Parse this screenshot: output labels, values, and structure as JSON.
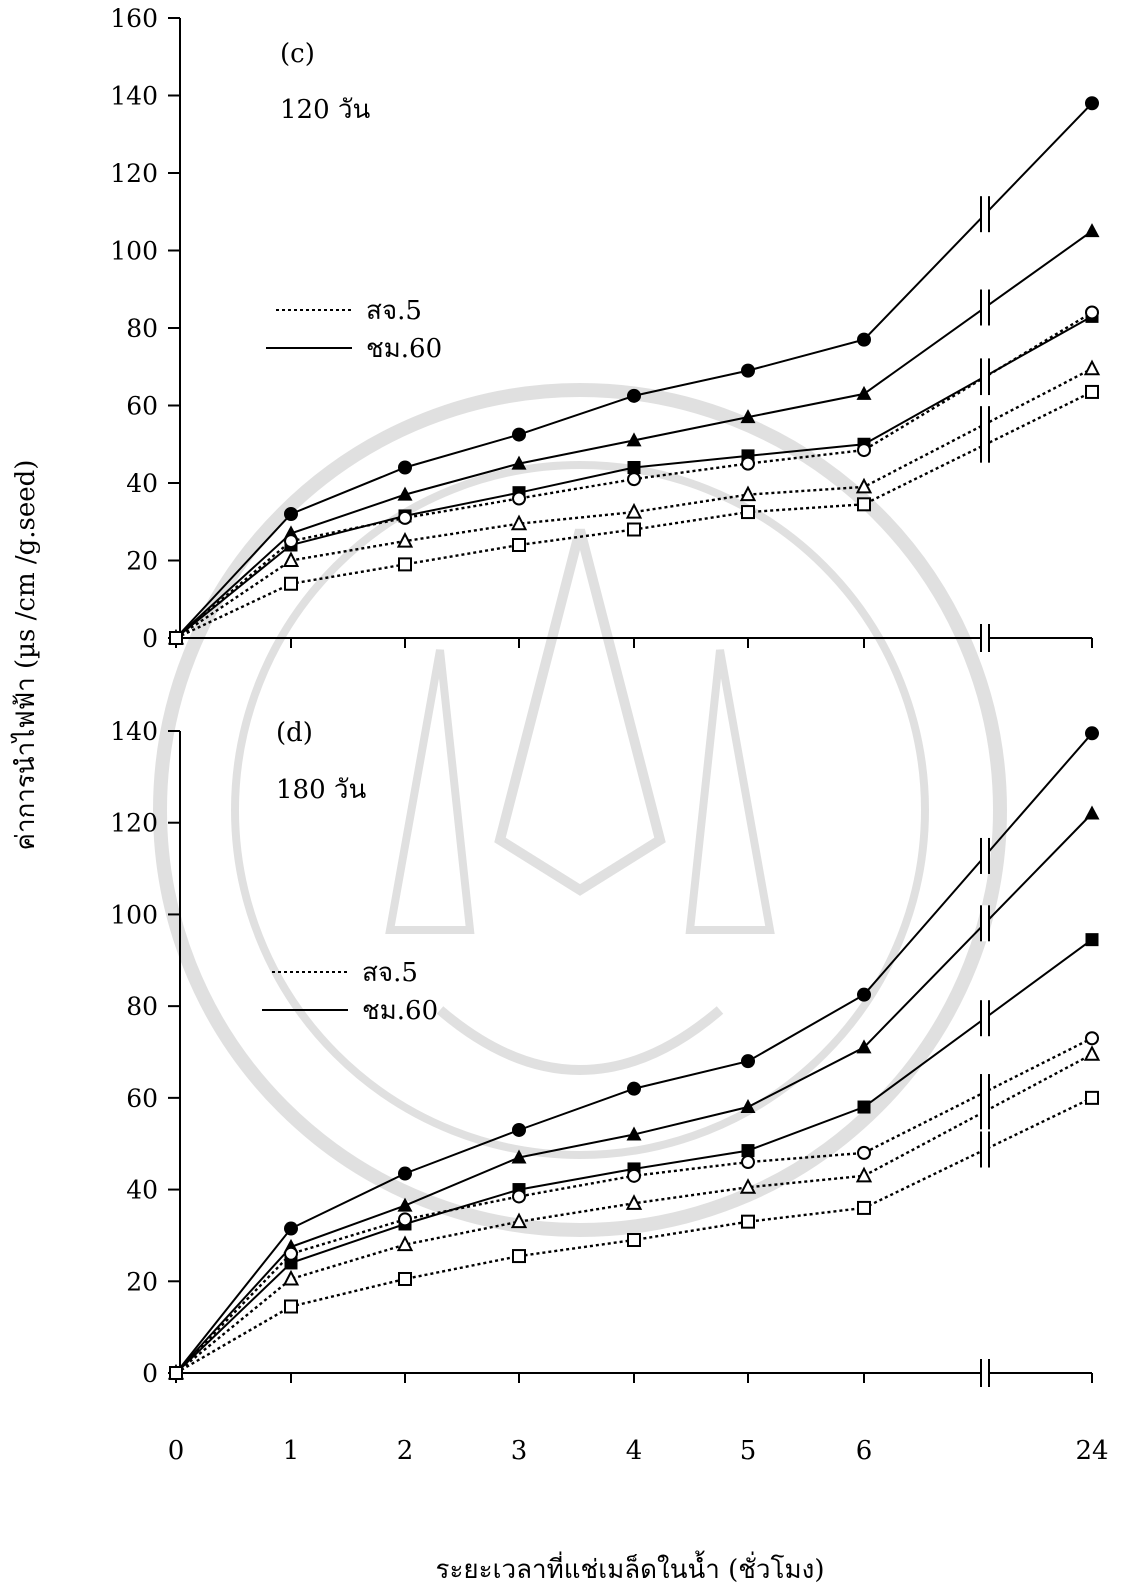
{
  "figure": {
    "ylabel": "ค่าการนำไฟฟ้า (µs /cm /g.seed)",
    "xlabel": "ระยะเวลาที่แช่เมล็ดในน้ำ (ชั่วโมง)",
    "xticks": [
      "0",
      "1",
      "2",
      "3",
      "4",
      "5",
      "6",
      "24"
    ],
    "legend": {
      "dotted_label": "สจ.5",
      "solid_label": "ชม.60"
    },
    "colors": {
      "ink": "#000000",
      "watermark": "#c8c8c8"
    }
  },
  "chart_data": [
    {
      "type": "line",
      "panel_label": "(c)",
      "subtitle": "120 วัน",
      "x": [
        0,
        1,
        2,
        3,
        4,
        5,
        6,
        24
      ],
      "x_axis_break": "between 6 and 24",
      "ylim": [
        0,
        160
      ],
      "yticks": [
        0,
        20,
        40,
        60,
        80,
        100,
        120,
        140,
        160
      ],
      "legend_placement": "upper-left",
      "series": [
        {
          "name": "ชม.60",
          "marker": "filled-circle",
          "line": "solid",
          "values": [
            0,
            32,
            44,
            52.5,
            62.5,
            69,
            77,
            138
          ]
        },
        {
          "name": "ชม.60",
          "marker": "filled-triangle",
          "line": "solid",
          "values": [
            0,
            27,
            37,
            45,
            51,
            57,
            63,
            105
          ]
        },
        {
          "name": "ชม.60",
          "marker": "filled-square",
          "line": "solid",
          "values": [
            0,
            24,
            31.5,
            37.5,
            44,
            47,
            50,
            83
          ]
        },
        {
          "name": "สจ.5",
          "marker": "open-circle",
          "line": "dotted",
          "values": [
            0,
            25,
            31,
            36,
            41,
            45,
            48.5,
            84
          ]
        },
        {
          "name": "สจ.5",
          "marker": "open-triangle",
          "line": "dotted",
          "values": [
            0,
            20,
            25,
            29.5,
            32.5,
            37,
            39,
            69.5
          ]
        },
        {
          "name": "สจ.5",
          "marker": "open-square",
          "line": "dotted",
          "values": [
            0,
            14,
            19,
            24,
            28,
            32.5,
            34.5,
            63.5
          ]
        }
      ]
    },
    {
      "type": "line",
      "panel_label": "(d)",
      "subtitle": "180 วัน",
      "x": [
        0,
        1,
        2,
        3,
        4,
        5,
        6,
        24
      ],
      "x_axis_break": "between 6 and 24",
      "ylim": [
        0,
        140
      ],
      "yticks": [
        0,
        20,
        40,
        60,
        80,
        100,
        120,
        140
      ],
      "legend_placement": "upper-left",
      "series": [
        {
          "name": "ชม.60",
          "marker": "filled-circle",
          "line": "solid",
          "values": [
            0,
            31.5,
            43.5,
            53,
            62,
            68,
            82.5,
            139.5
          ]
        },
        {
          "name": "ชม.60",
          "marker": "filled-triangle",
          "line": "solid",
          "values": [
            0,
            27.5,
            36.5,
            47,
            52,
            58,
            71,
            122
          ]
        },
        {
          "name": "ชม.60",
          "marker": "filled-square",
          "line": "solid",
          "values": [
            0,
            24,
            32.5,
            40,
            44.5,
            48.5,
            58,
            94.5
          ]
        },
        {
          "name": "สจ.5",
          "marker": "open-circle",
          "line": "dotted",
          "values": [
            0,
            26,
            33.5,
            38.5,
            43,
            46,
            48,
            73
          ]
        },
        {
          "name": "สจ.5",
          "marker": "open-triangle",
          "line": "dotted",
          "values": [
            0,
            20.5,
            28,
            33,
            37,
            40.5,
            43,
            69.5
          ]
        },
        {
          "name": "สจ.5",
          "marker": "open-square",
          "line": "dotted",
          "values": [
            0,
            14.5,
            20.5,
            25.5,
            29,
            33,
            36,
            60
          ]
        }
      ]
    }
  ]
}
